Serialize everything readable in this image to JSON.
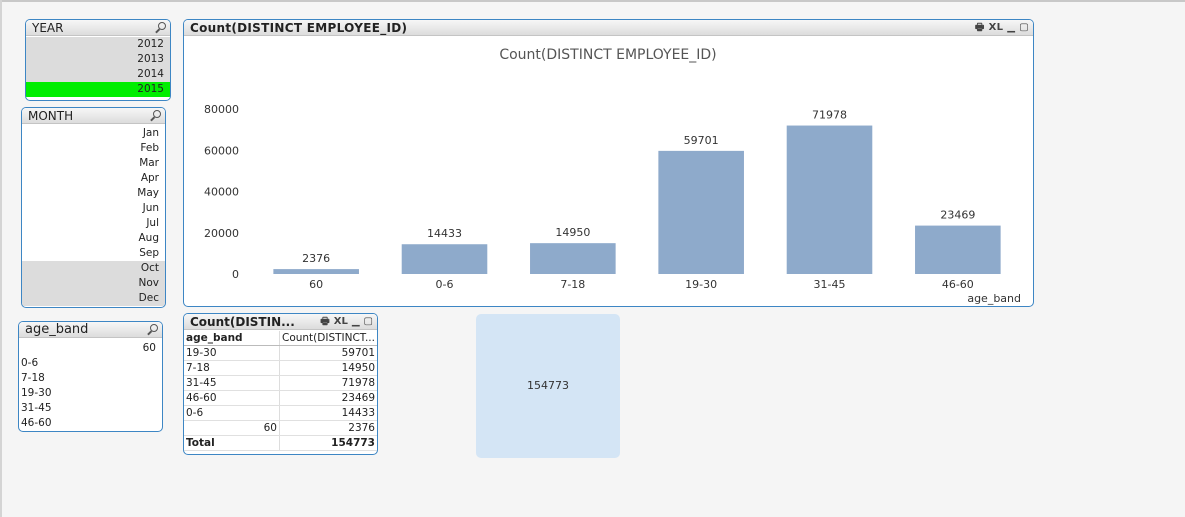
{
  "year_box": {
    "title": "YEAR",
    "items": [
      "2012",
      "2013",
      "2014",
      "2015"
    ],
    "selected": "2015"
  },
  "month_box": {
    "title": "MONTH",
    "items": [
      "Jan",
      "Feb",
      "Mar",
      "Apr",
      "May",
      "Jun",
      "Jul",
      "Aug",
      "Sep",
      "Oct",
      "Nov",
      "Dec"
    ],
    "excluded": [
      "Oct",
      "Nov",
      "Dec"
    ]
  },
  "age_box": {
    "title": "age_band",
    "items": [
      "60",
      "0-6",
      "7-18",
      "19-30",
      "31-45",
      "46-60"
    ]
  },
  "chart_box": {
    "caption": "Count(DISTINCT  EMPLOYEE_ID)",
    "xl_label": "XL"
  },
  "chart_data": {
    "type": "bar",
    "title": "Count(DISTINCT EMPLOYEE_ID)",
    "xlabel": "age_band",
    "ylabel": "",
    "categories": [
      "60",
      "0-6",
      "7-18",
      "19-30",
      "31-45",
      "46-60"
    ],
    "values": [
      2376,
      14433,
      14950,
      59701,
      71978,
      23469
    ],
    "yticks": [
      0,
      20000,
      40000,
      60000,
      80000
    ],
    "ylim": [
      0,
      80000
    ],
    "bar_color": "#8eaacb",
    "grid": false
  },
  "table_box": {
    "caption": "Count(DISTIN...",
    "xl_label": "XL",
    "headers": [
      "age_band",
      "Count(DISTINCT..."
    ],
    "rows": [
      [
        "19-30",
        "59701"
      ],
      [
        "7-18",
        "14950"
      ],
      [
        "31-45",
        "71978"
      ],
      [
        "46-60",
        "23469"
      ],
      [
        "0-6",
        "14433"
      ],
      [
        "60",
        "2376"
      ]
    ],
    "total_label": "Total",
    "total_value": "154773"
  },
  "kpi": {
    "value": "154773",
    "background": "#d4e5f5"
  },
  "colors": {
    "border": "#3d86c4",
    "selected": "#00ee00",
    "excluded": "#dcdcdc"
  }
}
